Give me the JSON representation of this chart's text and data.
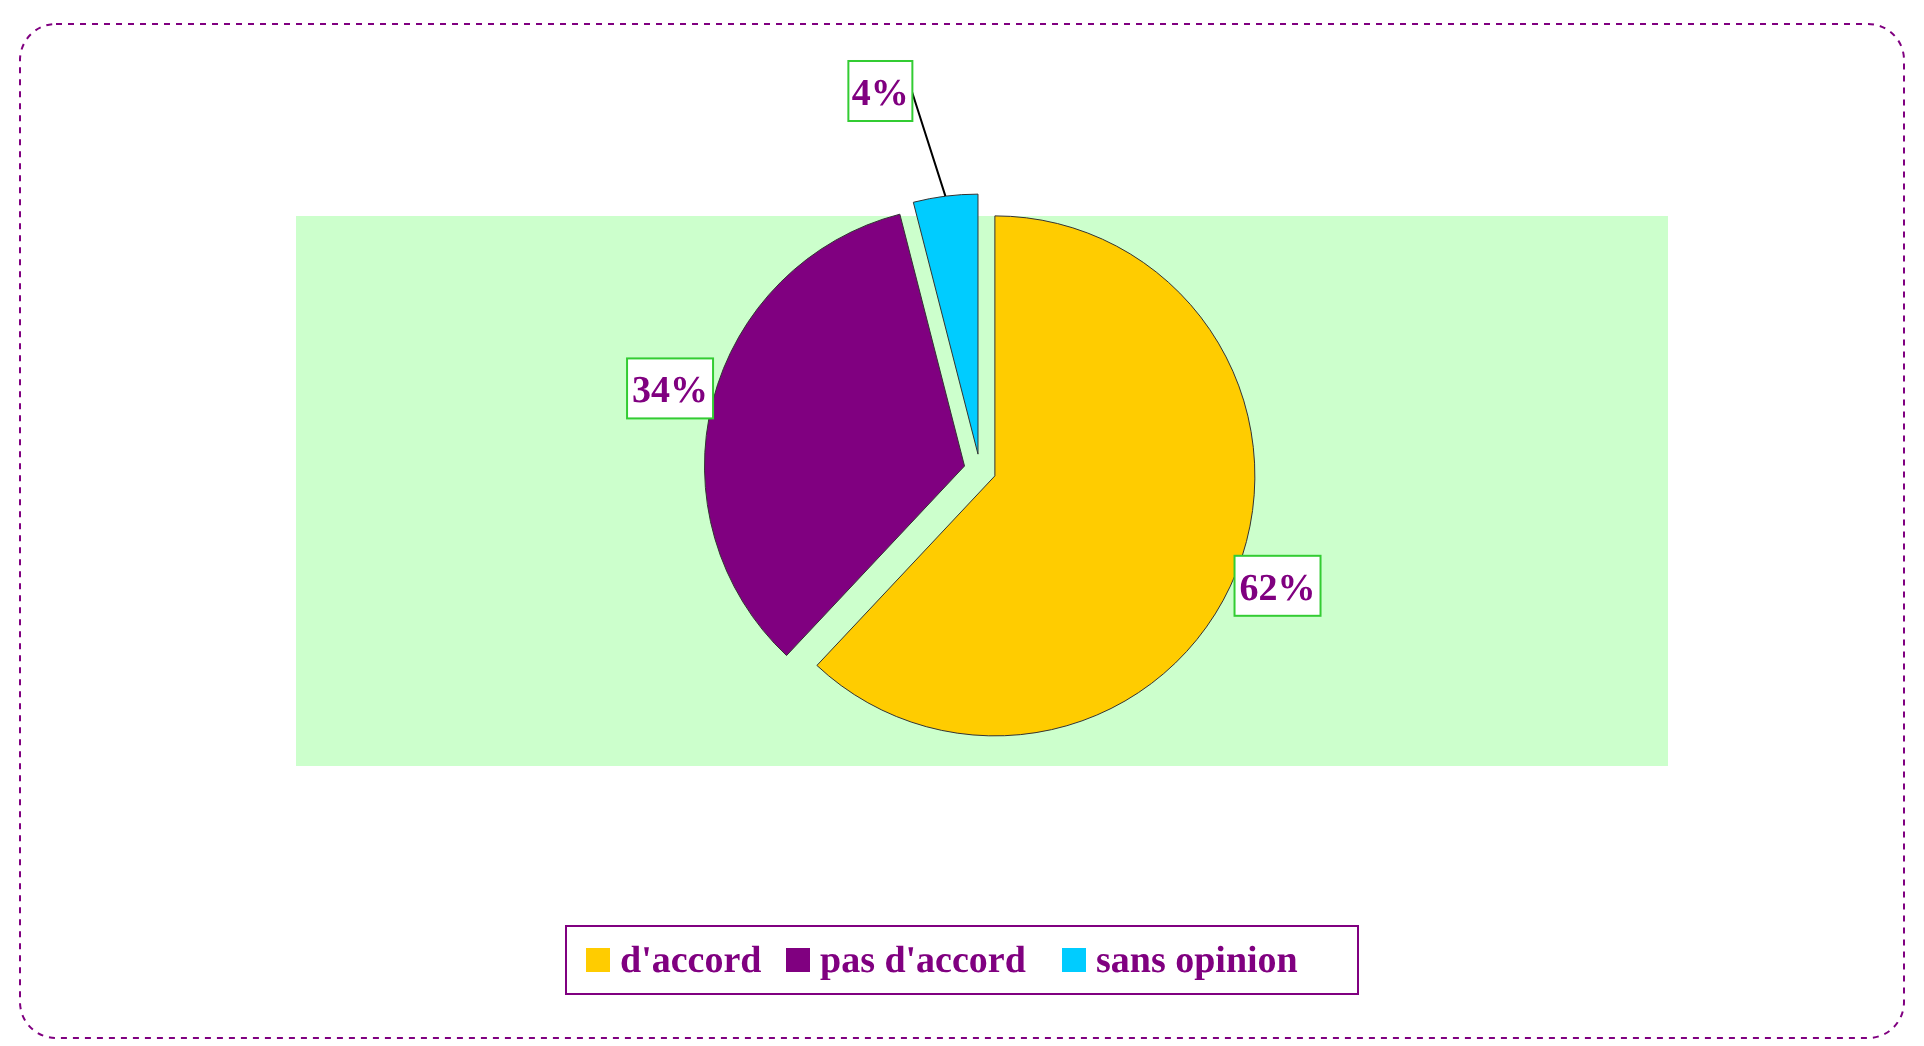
{
  "chart_data": {
    "type": "pie",
    "categories": [
      "d'accord",
      "pas d'accord",
      "sans opinion"
    ],
    "values": [
      62,
      34,
      4
    ],
    "colors": [
      "#ffcc00",
      "#800080",
      "#00ccff"
    ],
    "value_labels": [
      "62%",
      "34%",
      "4%"
    ],
    "legend": "bottom"
  }
}
